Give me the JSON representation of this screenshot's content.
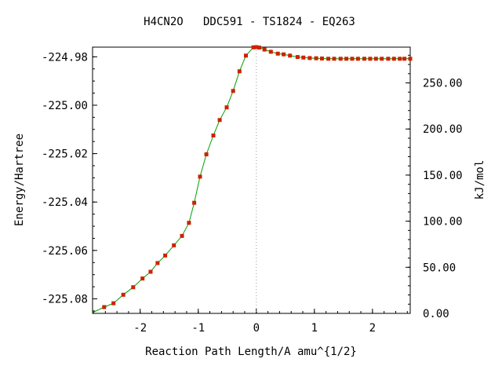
{
  "chart_data": {
    "type": "line",
    "title": "H4CN2O   DDC591 - TS1824 - EQ263",
    "xlabel": "Reaction Path Length/A amu^{1/2}",
    "ylabel": "Energy/Hartree",
    "y2label": "kJ/mol",
    "xlim": [
      -2.82,
      2.65
    ],
    "ylim": [
      -225.086,
      -224.976
    ],
    "y2lim": [
      0.0,
      288.8
    ],
    "x_ticks": [
      -2,
      -1,
      0,
      1,
      2
    ],
    "x_tick_labels": [
      "-2",
      "-1",
      "0",
      "1",
      "2"
    ],
    "y_ticks": [
      -224.98,
      -225.0,
      -225.02,
      -225.04,
      -225.06,
      -225.08
    ],
    "y_tick_labels": [
      "-224.98",
      "-225.00",
      "-225.02",
      "-225.04",
      "-225.06",
      "-225.08"
    ],
    "y2_ticks": [
      0,
      50,
      100,
      150,
      200,
      250
    ],
    "y2_tick_labels": [
      "0.00",
      "50.00",
      "100.00",
      "150.00",
      "200.00",
      "250.00"
    ],
    "ts_marker_x": 0.0,
    "line_color": "#00a000",
    "marker_color": "#cc2200",
    "ts_line_color": "#999999",
    "series": [
      {
        "x": [
          -2.62,
          -2.46,
          -2.29,
          -2.12,
          -1.96,
          -1.82,
          -1.7,
          -1.57,
          -1.42,
          -1.28,
          -1.16,
          -1.07,
          -0.97,
          -0.86,
          -0.74,
          -0.63,
          -0.51,
          -0.4,
          -0.29,
          -0.18,
          -0.05,
          0.0,
          0.05,
          0.14,
          0.25,
          0.37,
          0.47,
          0.58,
          0.71,
          0.81,
          0.92,
          1.03,
          1.13,
          1.24,
          1.34,
          1.45,
          1.55,
          1.65,
          1.75,
          1.86,
          1.96,
          2.06,
          2.16,
          2.27,
          2.37,
          2.47,
          2.55,
          2.65
        ],
        "y": [
          -225.0834,
          -225.0818,
          -225.0783,
          -225.0752,
          -225.0716,
          -225.0688,
          -225.0652,
          -225.0621,
          -225.0579,
          -225.054,
          -225.0486,
          -225.0403,
          -225.0295,
          -225.0203,
          -225.0125,
          -225.0061,
          -225.0009,
          -224.9941,
          -224.986,
          -224.9795,
          -224.9761,
          -224.976,
          -224.9762,
          -224.977,
          -224.9779,
          -224.9787,
          -224.979,
          -224.9795,
          -224.9801,
          -224.9803,
          -224.9805,
          -224.9806,
          -224.9807,
          -224.9808,
          -224.9808,
          -224.9808,
          -224.9808,
          -224.9808,
          -224.9808,
          -224.9808,
          -224.9808,
          -224.9808,
          -224.9808,
          -224.9808,
          -224.9808,
          -224.9808,
          -224.9808,
          -224.9808
        ]
      }
    ]
  }
}
